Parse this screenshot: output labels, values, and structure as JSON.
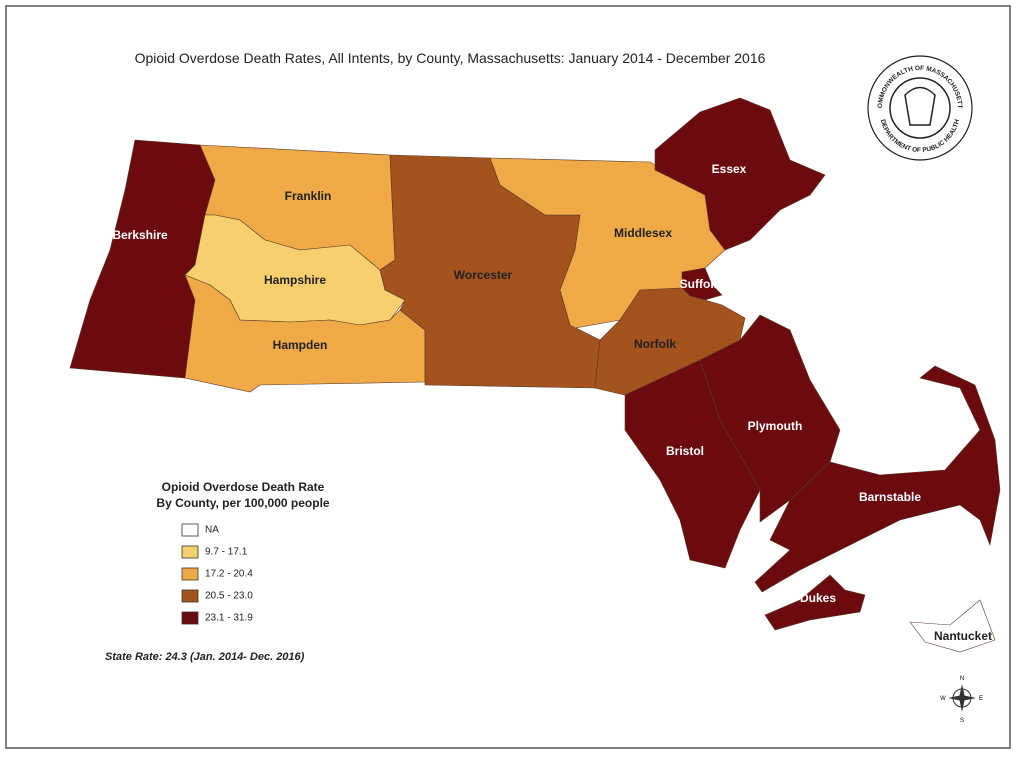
{
  "title": "Opioid Overdose Death Rates, All Intents, by County, Massachusetts: January 2014 - December 2016",
  "counties": [
    {
      "label": "Berkshire",
      "color": "#6b0b10"
    },
    {
      "label": "Franklin",
      "color": "#f0a947"
    },
    {
      "label": "Hampshire",
      "color": "#f8cf6e"
    },
    {
      "label": "Hampden",
      "color": "#f0a947"
    },
    {
      "label": "Worcester",
      "color": "#a4521e"
    },
    {
      "label": "Middlesex",
      "color": "#f0a947"
    },
    {
      "label": "Essex",
      "color": "#6b0b10"
    },
    {
      "label": "Suffolk",
      "color": "#6b0b10"
    },
    {
      "label": "Norfolk",
      "color": "#a4521e"
    },
    {
      "label": "Bristol",
      "color": "#6b0b10"
    },
    {
      "label": "Plymouth",
      "color": "#6b0b10"
    },
    {
      "label": "Barnstable",
      "color": "#6b0b10"
    },
    {
      "label": "Dukes",
      "color": "#6b0b10"
    },
    {
      "label": "Nantucket",
      "color": "#ffffff"
    }
  ],
  "legend": {
    "title": [
      "Opioid Overdose Death Rate",
      "By County, per 100,000 people"
    ],
    "items": [
      {
        "label": "NA",
        "color": "#ffffff"
      },
      {
        "label": "9.7 - 17.1",
        "color": "#f8cf6e"
      },
      {
        "label": "17.2 - 20.4",
        "color": "#f0a947"
      },
      {
        "label": "20.5 - 23.0",
        "color": "#a4521e"
      },
      {
        "label": "23.1 - 31.9",
        "color": "#6b0b10"
      }
    ]
  },
  "state_rate": "State Rate: 24.3 (Jan. 2014- Dec. 2016)",
  "seal": {
    "top": "COMMONWEALTH OF MASSACHUSETTS",
    "bottom": "DEPARTMENT OF PUBLIC HEALTH"
  },
  "compass": {
    "n": "N",
    "s": "S",
    "e": "E",
    "w": "W"
  }
}
